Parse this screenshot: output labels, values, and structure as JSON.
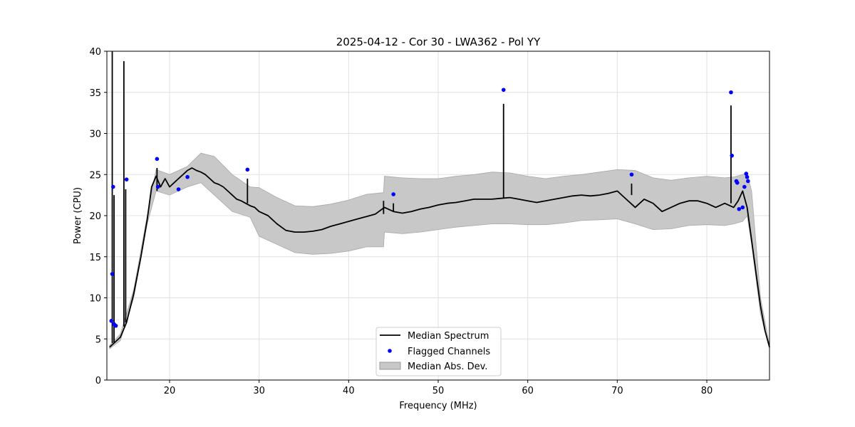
{
  "chart_data": {
    "type": "line",
    "title": "2025-04-12 - Cor 30 - LWA362 - Pol YY",
    "xlabel": "Frequency (MHz)",
    "ylabel": "Power (CPU)",
    "xlim": [
      13,
      87
    ],
    "ylim": [
      0,
      40
    ],
    "xticks": [
      20,
      30,
      40,
      50,
      60,
      70,
      80
    ],
    "yticks": [
      0,
      5,
      10,
      15,
      20,
      25,
      30,
      35,
      40
    ],
    "grid": true,
    "legend": {
      "position": "bottom-center",
      "entries": [
        {
          "label": "Median Spectrum",
          "kind": "line",
          "color": "#000000"
        },
        {
          "label": "Flagged Channels",
          "kind": "marker",
          "color": "#0000ff"
        },
        {
          "label": "Median Abs. Dev.",
          "kind": "band",
          "color": "#c8c8c8"
        }
      ]
    },
    "series": [
      {
        "name": "Median Spectrum",
        "color": "#000000",
        "x": [
          13.3,
          13.8,
          14.5,
          15.2,
          16.0,
          16.8,
          17.5,
          18.0,
          18.5,
          19.0,
          19.5,
          20.0,
          20.5,
          21.0,
          21.5,
          22.0,
          22.5,
          23.0,
          23.5,
          24.0,
          24.5,
          25.0,
          25.5,
          26.0,
          26.5,
          27.0,
          27.5,
          28.0,
          28.5,
          29.0,
          29.5,
          30.0,
          31.0,
          32.0,
          33.0,
          34.0,
          35.0,
          36.0,
          37.0,
          38.0,
          39.0,
          40.0,
          41.0,
          42.0,
          43.0,
          44.0,
          45.0,
          46.0,
          47.0,
          48.0,
          49.0,
          50.0,
          51.0,
          52.0,
          53.0,
          54.0,
          55.0,
          56.0,
          57.0,
          58.0,
          59.0,
          60.0,
          61.0,
          62.0,
          63.0,
          64.0,
          65.0,
          66.0,
          67.0,
          68.0,
          69.0,
          70.0,
          71.0,
          72.0,
          73.0,
          74.0,
          75.0,
          76.0,
          77.0,
          78.0,
          79.0,
          80.0,
          81.0,
          82.0,
          83.0,
          83.5,
          84.0,
          84.5,
          85.0,
          85.5,
          86.0,
          86.5,
          87.0
        ],
        "values": [
          4.0,
          4.5,
          5.2,
          7.0,
          10.5,
          15.0,
          19.5,
          23.5,
          24.8,
          23.5,
          24.5,
          23.5,
          24.0,
          24.5,
          25.0,
          25.5,
          25.8,
          25.5,
          25.3,
          25.0,
          24.5,
          24.0,
          23.8,
          23.5,
          23.0,
          22.5,
          22.0,
          21.8,
          21.5,
          21.2,
          21.0,
          20.5,
          20.0,
          19.0,
          18.2,
          18.0,
          18.0,
          18.1,
          18.3,
          18.7,
          19.0,
          19.3,
          19.6,
          19.9,
          20.2,
          21.0,
          20.5,
          20.3,
          20.5,
          20.8,
          21.0,
          21.3,
          21.5,
          21.6,
          21.8,
          22.0,
          22.0,
          22.0,
          22.1,
          22.2,
          22.0,
          21.8,
          21.6,
          21.8,
          22.0,
          22.2,
          22.4,
          22.5,
          22.4,
          22.5,
          22.7,
          23.0,
          22.0,
          21.0,
          22.0,
          21.5,
          20.5,
          21.0,
          21.5,
          21.8,
          21.8,
          21.5,
          21.0,
          21.5,
          21.0,
          21.8,
          23.0,
          21.0,
          17.0,
          13.0,
          9.0,
          6.0,
          4.0
        ]
      },
      {
        "name": "Median Abs. Dev.",
        "color": "#c8c8c8",
        "x": [
          13.3,
          14.5,
          16.0,
          17.5,
          18.5,
          20.0,
          22.0,
          23.5,
          25.0,
          27.0,
          29.0,
          30.0,
          32.0,
          34.0,
          36.0,
          38.0,
          40.0,
          42.0,
          43.9,
          44.0,
          46.0,
          48.0,
          50.0,
          52.0,
          54.0,
          56.0,
          58.0,
          60.0,
          62.0,
          64.0,
          66.0,
          68.0,
          70.0,
          72.0,
          74.0,
          76.0,
          78.0,
          80.0,
          82.0,
          83.0,
          84.0,
          84.5,
          85.0,
          86.0,
          87.0
        ],
        "lower": [
          3.8,
          4.8,
          10.0,
          19.0,
          23.0,
          22.5,
          23.5,
          24.0,
          22.5,
          20.5,
          19.8,
          17.5,
          16.5,
          15.5,
          15.3,
          15.4,
          15.7,
          16.2,
          16.2,
          18.0,
          17.8,
          18.0,
          18.3,
          18.6,
          18.8,
          19.0,
          19.0,
          18.9,
          18.9,
          19.1,
          19.4,
          19.5,
          19.6,
          19.0,
          18.3,
          18.4,
          18.8,
          18.9,
          18.8,
          19.0,
          19.3,
          20.0,
          16.5,
          8.0,
          3.8
        ],
        "upper": [
          4.2,
          5.6,
          11.0,
          20.0,
          25.6,
          25.0,
          26.0,
          27.6,
          27.2,
          25.0,
          23.5,
          23.4,
          22.2,
          21.2,
          21.1,
          21.4,
          21.9,
          22.6,
          22.8,
          24.8,
          24.6,
          24.5,
          24.5,
          24.8,
          25.0,
          25.3,
          25.2,
          24.8,
          24.5,
          24.8,
          25.0,
          25.3,
          25.6,
          25.5,
          24.6,
          24.3,
          24.6,
          24.8,
          24.6,
          24.7,
          25.0,
          25.2,
          23.0,
          10.0,
          4.2
        ]
      },
      {
        "name": "Spikes",
        "color": "#000000",
        "segments": [
          {
            "x": 13.6,
            "y0": 4.5,
            "y1": 40.0
          },
          {
            "x": 13.8,
            "y0": 4.6,
            "y1": 22.5
          },
          {
            "x": 14.9,
            "y0": 6.5,
            "y1": 38.8
          },
          {
            "x": 15.1,
            "y0": 7.0,
            "y1": 23.2
          },
          {
            "x": 18.6,
            "y0": 23.0,
            "y1": 25.8
          },
          {
            "x": 28.7,
            "y0": 21.5,
            "y1": 24.5
          },
          {
            "x": 43.9,
            "y0": 20.2,
            "y1": 21.8
          },
          {
            "x": 45.0,
            "y0": 20.5,
            "y1": 21.5
          },
          {
            "x": 57.3,
            "y0": 22.1,
            "y1": 33.6
          },
          {
            "x": 71.6,
            "y0": 22.5,
            "y1": 23.9
          },
          {
            "x": 82.7,
            "y0": 21.5,
            "y1": 33.4
          }
        ]
      },
      {
        "name": "Flagged Channels",
        "color": "#0000ff",
        "x": [
          13.5,
          13.6,
          13.7,
          13.8,
          14.0,
          15.2,
          18.6,
          18.7,
          21.0,
          22.0,
          28.7,
          45.0,
          57.3,
          71.6,
          82.7,
          82.8,
          83.3,
          83.4,
          83.6,
          84.0,
          84.2,
          84.4,
          84.5,
          84.6
        ],
        "values": [
          7.2,
          12.9,
          23.5,
          6.8,
          6.6,
          24.4,
          26.9,
          23.5,
          23.2,
          24.7,
          25.6,
          22.6,
          35.3,
          25.0,
          35.0,
          27.3,
          24.2,
          24.0,
          20.8,
          21.0,
          23.5,
          25.1,
          24.7,
          24.2
        ]
      }
    ]
  }
}
